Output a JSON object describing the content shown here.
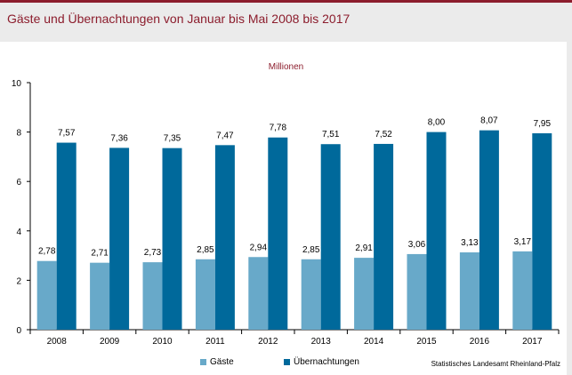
{
  "title": "Gäste und Übernachtungen von Januar bis Mai 2008 bis 2017",
  "unit_label": "Millionen",
  "source": "Statistisches Landesamt Rheinland-Pfalz",
  "colors": {
    "accent": "#8c1d2d",
    "gaeste": "#68a9c9",
    "uebernachtungen": "#00699b",
    "background": "#ebebeb"
  },
  "chart_data": {
    "type": "bar",
    "categories": [
      "2008",
      "2009",
      "2010",
      "2011",
      "2012",
      "2013",
      "2014",
      "2015",
      "2016",
      "2017"
    ],
    "series": [
      {
        "name": "Gäste",
        "values": [
          2.78,
          2.71,
          2.73,
          2.85,
          2.94,
          2.85,
          2.91,
          3.06,
          3.13,
          3.17
        ],
        "labels": [
          "2,78",
          "2,71",
          "2,73",
          "2,85",
          "2,94",
          "2,85",
          "2,91",
          "3,06",
          "3,13",
          "3,17"
        ]
      },
      {
        "name": "Übernachtungen",
        "values": [
          7.57,
          7.36,
          7.35,
          7.47,
          7.78,
          7.51,
          7.52,
          8.0,
          8.07,
          7.95
        ],
        "labels": [
          "7,57",
          "7,36",
          "7,35",
          "7,47",
          "7,78",
          "7,51",
          "7,52",
          "8,00",
          "8,07",
          "7,95"
        ]
      }
    ],
    "yticks": [
      "0",
      "2",
      "4",
      "6",
      "8",
      "10"
    ],
    "ylim": [
      0,
      10
    ],
    "xlabel": "",
    "ylabel": "",
    "grid": false,
    "legend": "bottom"
  }
}
